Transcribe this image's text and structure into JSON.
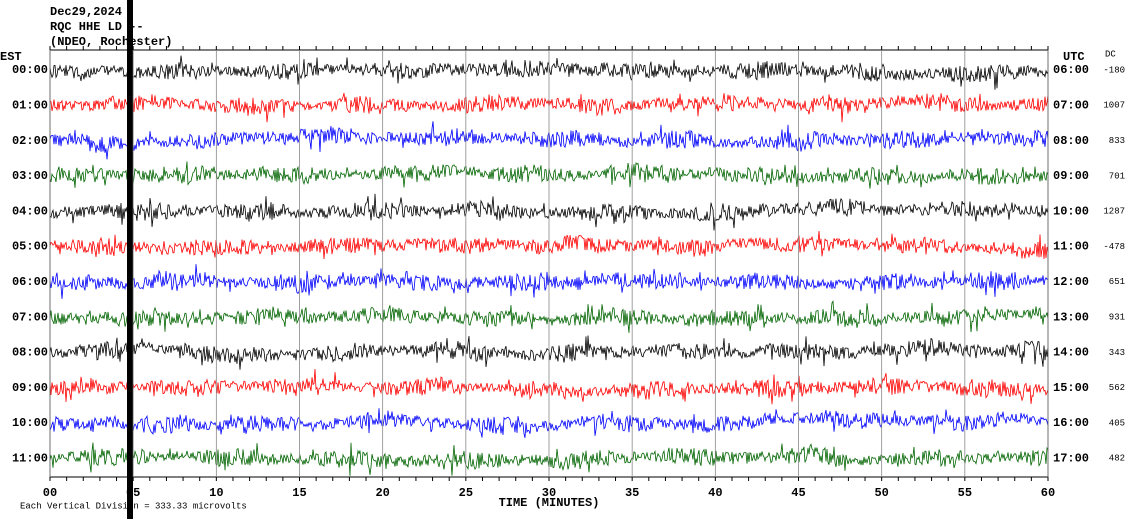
{
  "header": {
    "date": "Dec29,2024",
    "station": "RQC HHE LD --",
    "network": "(NDEO, Rochester)"
  },
  "chart_data": {
    "type": "helicorder",
    "left_axis_label": "EST",
    "right_axis_label": "UTC",
    "dc_label": "DC",
    "rows": [
      {
        "est": "00:00",
        "utc": "06:00",
        "dc": -180
      },
      {
        "est": "01:00",
        "utc": "07:00",
        "dc": 1007
      },
      {
        "est": "02:00",
        "utc": "08:00",
        "dc": 833
      },
      {
        "est": "03:00",
        "utc": "09:00",
        "dc": 701
      },
      {
        "est": "04:00",
        "utc": "10:00",
        "dc": 1287
      },
      {
        "est": "05:00",
        "utc": "11:00",
        "dc": -478
      },
      {
        "est": "06:00",
        "utc": "12:00",
        "dc": 651
      },
      {
        "est": "07:00",
        "utc": "13:00",
        "dc": 931
      },
      {
        "est": "08:00",
        "utc": "14:00",
        "dc": 343
      },
      {
        "est": "09:00",
        "utc": "15:00",
        "dc": 562
      },
      {
        "est": "10:00",
        "utc": "16:00",
        "dc": 405
      },
      {
        "est": "11:00",
        "utc": "17:00",
        "dc": 482
      }
    ],
    "x_label": "TIME (MINUTES)",
    "xlim": [
      0,
      60
    ],
    "xticks": [
      {
        "value": 0,
        "label": "00"
      },
      {
        "value": 5,
        "label": "05"
      },
      10,
      15,
      20,
      25,
      30,
      35,
      40,
      45,
      50,
      55,
      60
    ],
    "footnote": "Each Vertical Division = 333.33 microvolts",
    "trace_colors": [
      "#000000",
      "#ff0000",
      "#0000ff",
      "#006400"
    ],
    "grid": true
  }
}
